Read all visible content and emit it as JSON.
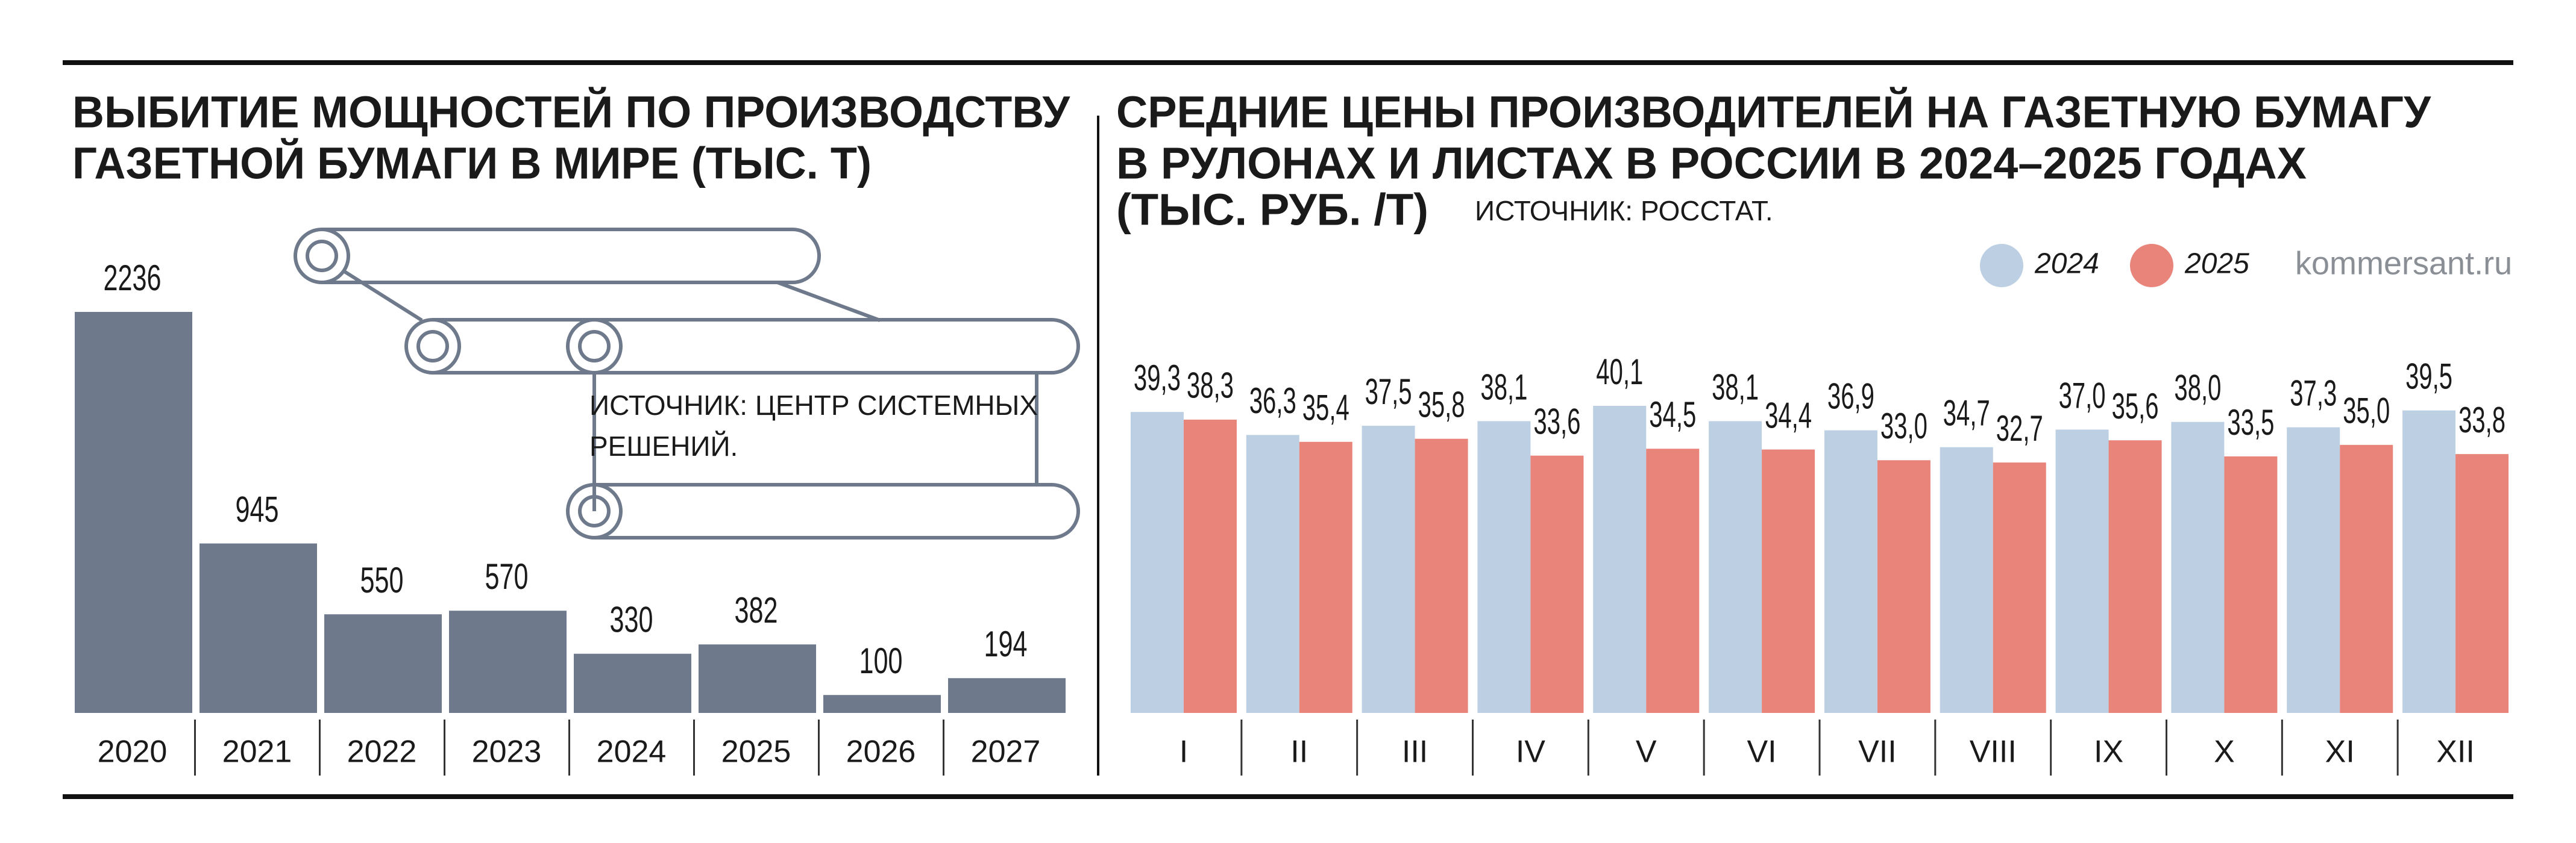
{
  "chart_data": [
    {
      "type": "bar",
      "title": [
        "ВЫБИТИЕ МОЩНОСТЕЙ ПО ПРОИЗВОДСТВУ",
        "ГАЗЕТНОЙ БУМАГИ В МИРЕ (ТЫС. Т)"
      ],
      "source": [
        "ИСТОЧНИК: ЦЕНТР СИСТЕМНЫХ",
        "РЕШЕНИЙ."
      ],
      "categories": [
        "2020",
        "2021",
        "2022",
        "2023",
        "2024",
        "2025",
        "2026",
        "2027"
      ],
      "values": [
        2236,
        945,
        550,
        570,
        330,
        382,
        100,
        194
      ],
      "color": "#6e7a8c"
    },
    {
      "type": "grouped_bar",
      "title": [
        "СРЕДНИЕ ЦЕНЫ ПРОИЗВОДИТЕЛЕЙ НА ГАЗЕТНУЮ БУМАГУ",
        "В РУЛОНАХ И ЛИСТАХ В РОССИИ В 2024–2025 ГОДАХ",
        "(ТЫС. РУБ. /Т)"
      ],
      "source": [
        "ИСТОЧНИК: РОССТАТ."
      ],
      "site": "kommersant.ru",
      "legend": "top-right",
      "categories": [
        "I",
        "II",
        "III",
        "IV",
        "V",
        "VI",
        "VII",
        "VIII",
        "IX",
        "X",
        "XI",
        "XII"
      ],
      "series": [
        {
          "name": "2024",
          "color": "#bccfe3",
          "values": [
            39.3,
            36.3,
            37.5,
            38.1,
            40.1,
            38.1,
            36.9,
            34.7,
            37.0,
            38.0,
            37.3,
            39.5
          ],
          "value_labels": [
            "39,3",
            "36,3",
            "37,5",
            "38,1",
            "40,1",
            "38,1",
            "36,9",
            "34,7",
            "37,0",
            "38,0",
            "37,3",
            "39,5"
          ]
        },
        {
          "name": "2025",
          "color": "#e8847a",
          "values": [
            38.3,
            35.4,
            35.8,
            33.6,
            34.5,
            34.4,
            33.0,
            32.7,
            35.6,
            33.5,
            35.0,
            33.8
          ],
          "value_labels": [
            "38,3",
            "35,4",
            "35,8",
            "33,6",
            "34,5",
            "34,4",
            "33,0",
            "32,7",
            "35,6",
            "33,5",
            "35,0",
            "33,8"
          ]
        }
      ]
    }
  ]
}
